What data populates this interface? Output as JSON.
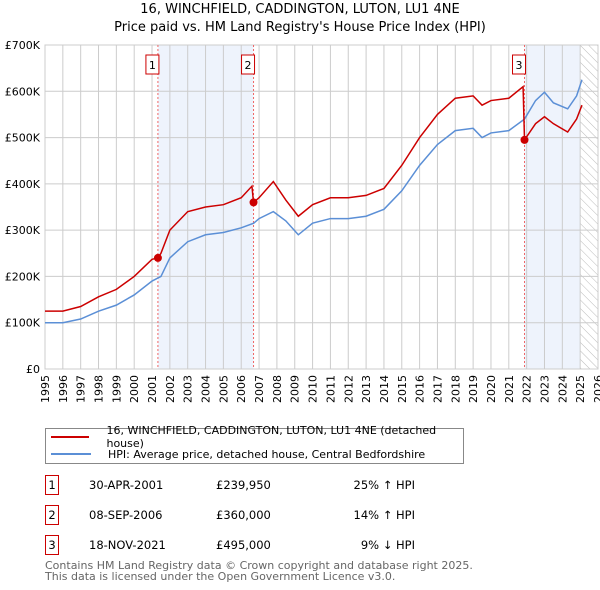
{
  "chart_data": {
    "type": "line",
    "title": "16, WINCHFIELD, CADDINGTON, LUTON, LU1 4NE",
    "subtitle": "Price paid vs. HM Land Registry's House Price Index (HPI)",
    "xlim": [
      1995,
      2026
    ],
    "ylim": [
      0,
      700000
    ],
    "yticks": [
      {
        "v": 0,
        "label": "£0"
      },
      {
        "v": 100000,
        "label": "£100K"
      },
      {
        "v": 200000,
        "label": "£200K"
      },
      {
        "v": 300000,
        "label": "£300K"
      },
      {
        "v": 400000,
        "label": "£400K"
      },
      {
        "v": 500000,
        "label": "£500K"
      },
      {
        "v": 600000,
        "label": "£600K"
      },
      {
        "v": 700000,
        "label": "£700K"
      }
    ],
    "xticks": [
      "1995",
      "1996",
      "1997",
      "1998",
      "1999",
      "2000",
      "2001",
      "2002",
      "2003",
      "2004",
      "2005",
      "2006",
      "2007",
      "2008",
      "2009",
      "2010",
      "2011",
      "2012",
      "2013",
      "2014",
      "2015",
      "2016",
      "2017",
      "2018",
      "2019",
      "2020",
      "2021",
      "2022",
      "2023",
      "2024",
      "2025",
      "2026"
    ],
    "series": [
      {
        "name": "16, WINCHFIELD, CADDINGTON, LUTON, LU1 4NE (detached house)",
        "color": "#cc0000",
        "x": [
          1995,
          1996,
          1997,
          1998,
          1999,
          2000,
          2001,
          2001.33,
          2001.5,
          2002,
          2003,
          2004,
          2005,
          2006,
          2006.6,
          2006.69,
          2007,
          2007.8,
          2008.5,
          2009.2,
          2010,
          2011,
          2012,
          2013,
          2014,
          2015,
          2016,
          2017,
          2018,
          2019,
          2019.5,
          2020,
          2021,
          2021.8,
          2021.88,
          2022.5,
          2023,
          2023.5,
          2024.3,
          2024.8,
          2025.1
        ],
        "y": [
          125000,
          125000,
          135000,
          156000,
          172000,
          200000,
          237000,
          239950,
          250000,
          300000,
          340000,
          350000,
          355000,
          370000,
          395000,
          360000,
          370000,
          405000,
          365000,
          330000,
          355000,
          370000,
          370000,
          375000,
          390000,
          440000,
          500000,
          550000,
          585000,
          590000,
          570000,
          580000,
          585000,
          610000,
          495000,
          530000,
          545000,
          530000,
          512000,
          540000,
          570000
        ]
      },
      {
        "name": "HPI: Average price, detached house, Central Bedfordshire",
        "color": "#5b8fd6",
        "x": [
          1995,
          1996,
          1997,
          1998,
          1999,
          2000,
          2001,
          2001.5,
          2002,
          2003,
          2004,
          2005,
          2006,
          2006.7,
          2007,
          2007.8,
          2008.5,
          2009.2,
          2010,
          2011,
          2012,
          2013,
          2014,
          2015,
          2016,
          2017,
          2018,
          2019,
          2019.5,
          2020,
          2021,
          2021.88,
          2022.5,
          2023,
          2023.5,
          2024.3,
          2024.8,
          2025.1
        ],
        "y": [
          100000,
          100000,
          108000,
          125000,
          138000,
          160000,
          190000,
          200000,
          240000,
          275000,
          290000,
          295000,
          305000,
          315000,
          325000,
          340000,
          320000,
          290000,
          315000,
          325000,
          325000,
          330000,
          345000,
          385000,
          440000,
          485000,
          515000,
          520000,
          500000,
          510000,
          515000,
          540000,
          580000,
          598000,
          575000,
          562000,
          590000,
          625000
        ]
      }
    ],
    "sales": [
      {
        "n": "1",
        "x": 2001.33,
        "y": 239950,
        "date": "30-APR-2001",
        "price": "£239,950",
        "hpi": "25% ↑ HPI"
      },
      {
        "n": "2",
        "x": 2006.69,
        "y": 360000,
        "date": "08-SEP-2006",
        "price": "£360,000",
        "hpi": "14% ↑ HPI"
      },
      {
        "n": "3",
        "x": 2021.88,
        "y": 495000,
        "date": "18-NOV-2021",
        "price": "£495,000",
        "hpi": "9% ↓ HPI"
      }
    ],
    "shaded_ranges": [
      [
        2001.33,
        2006.69
      ],
      [
        2021.88,
        2025.0
      ]
    ],
    "hatched_from": 2025.0,
    "legend_placement": "bottom"
  },
  "footer": {
    "line1": "Contains HM Land Registry data © Crown copyright and database right 2025.",
    "line2": "This data is licensed under the Open Government Licence v3.0."
  }
}
